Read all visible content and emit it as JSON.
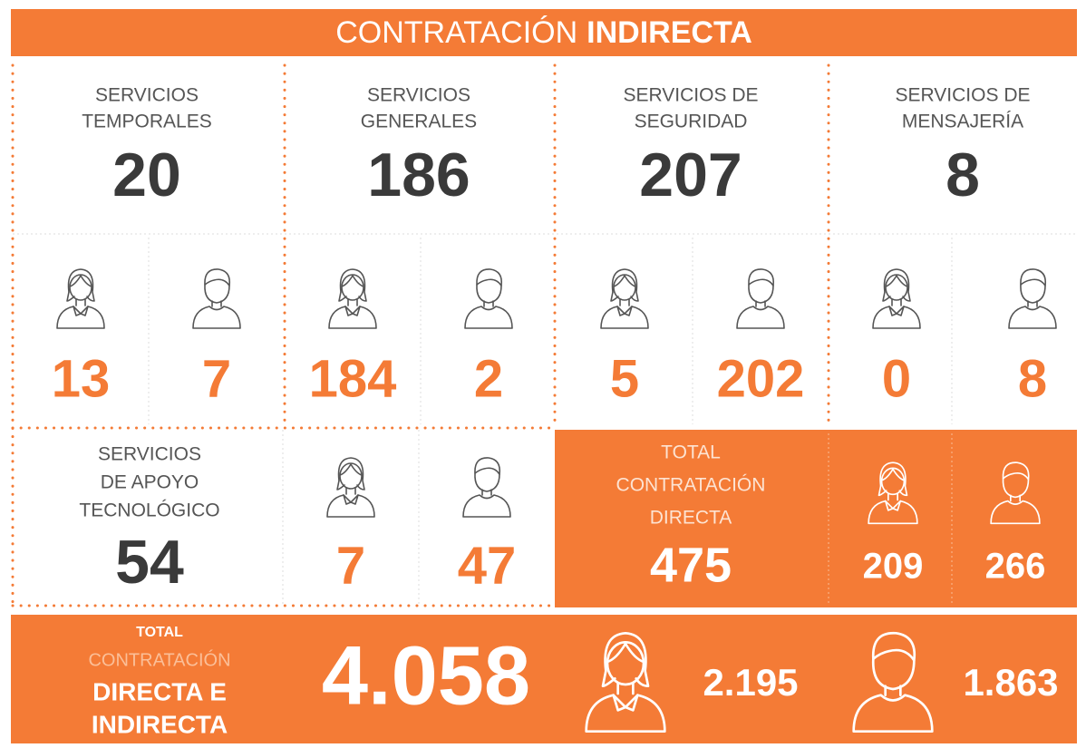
{
  "header": {
    "title_light": "CONTRATACIÓN",
    "title_bold": "INDIRECTA"
  },
  "services": [
    {
      "name_lines": [
        "SERVICIOS",
        "TEMPORALES"
      ],
      "total": 20,
      "women": 13,
      "men": 7
    },
    {
      "name_lines": [
        "SERVICIOS",
        "GENERALES"
      ],
      "total": 186,
      "women": 184,
      "men": 2
    },
    {
      "name_lines": [
        "SERVICIOS DE",
        "SEGURIDAD"
      ],
      "total": 207,
      "women": 5,
      "men": 202
    },
    {
      "name_lines": [
        "SERVICIOS DE",
        "MENSAJERÍA"
      ],
      "total": 8,
      "women": 0,
      "men": 8
    }
  ],
  "tech": {
    "name_lines": [
      "SERVICIOS",
      "DE APOYO",
      "TECNOLÓGICO"
    ],
    "total": 54,
    "women": 7,
    "men": 47
  },
  "total_direct": {
    "label_lines": [
      "TOTAL",
      "CONTRATACIÓN",
      "DIRECTA"
    ],
    "total": 475,
    "women": 209,
    "men": 266
  },
  "grand_total": {
    "label_top": "TOTAL",
    "label_mid": "CONTRATACIÓN",
    "label_bottom_lines": [
      "DIRECTA E",
      "INDIRECTA"
    ],
    "total": "4.058",
    "women": "2.195",
    "men": "1.863"
  }
}
